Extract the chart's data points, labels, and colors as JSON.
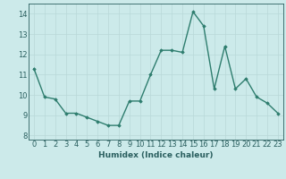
{
  "x": [
    0,
    1,
    2,
    3,
    4,
    5,
    6,
    7,
    8,
    9,
    10,
    11,
    12,
    13,
    14,
    15,
    16,
    17,
    18,
    19,
    20,
    21,
    22,
    23
  ],
  "y": [
    11.3,
    9.9,
    9.8,
    9.1,
    9.1,
    8.9,
    8.7,
    8.5,
    8.5,
    9.7,
    9.7,
    11.0,
    12.2,
    12.2,
    12.1,
    14.1,
    13.4,
    10.3,
    12.4,
    10.3,
    10.8,
    9.9,
    9.6,
    9.1
  ],
  "line_color": "#2e7d6e",
  "marker": "D",
  "marker_size": 1.8,
  "bg_color": "#cceaea",
  "grid_color": "#b8d8d8",
  "xlabel": "Humidex (Indice chaleur)",
  "xlim": [
    -0.5,
    23.5
  ],
  "ylim": [
    7.8,
    14.5
  ],
  "yticks": [
    8,
    9,
    10,
    11,
    12,
    13,
    14
  ],
  "xticks": [
    0,
    1,
    2,
    3,
    4,
    5,
    6,
    7,
    8,
    9,
    10,
    11,
    12,
    13,
    14,
    15,
    16,
    17,
    18,
    19,
    20,
    21,
    22,
    23
  ],
  "xtick_labels": [
    "0",
    "1",
    "2",
    "3",
    "4",
    "5",
    "6",
    "7",
    "8",
    "9",
    "10",
    "11",
    "12",
    "13",
    "14",
    "15",
    "16",
    "17",
    "18",
    "19",
    "20",
    "21",
    "22",
    "23"
  ],
  "font_color": "#2a5f5f",
  "linewidth": 1.0,
  "xlabel_fontsize": 6.5,
  "tick_fontsize": 6.0
}
